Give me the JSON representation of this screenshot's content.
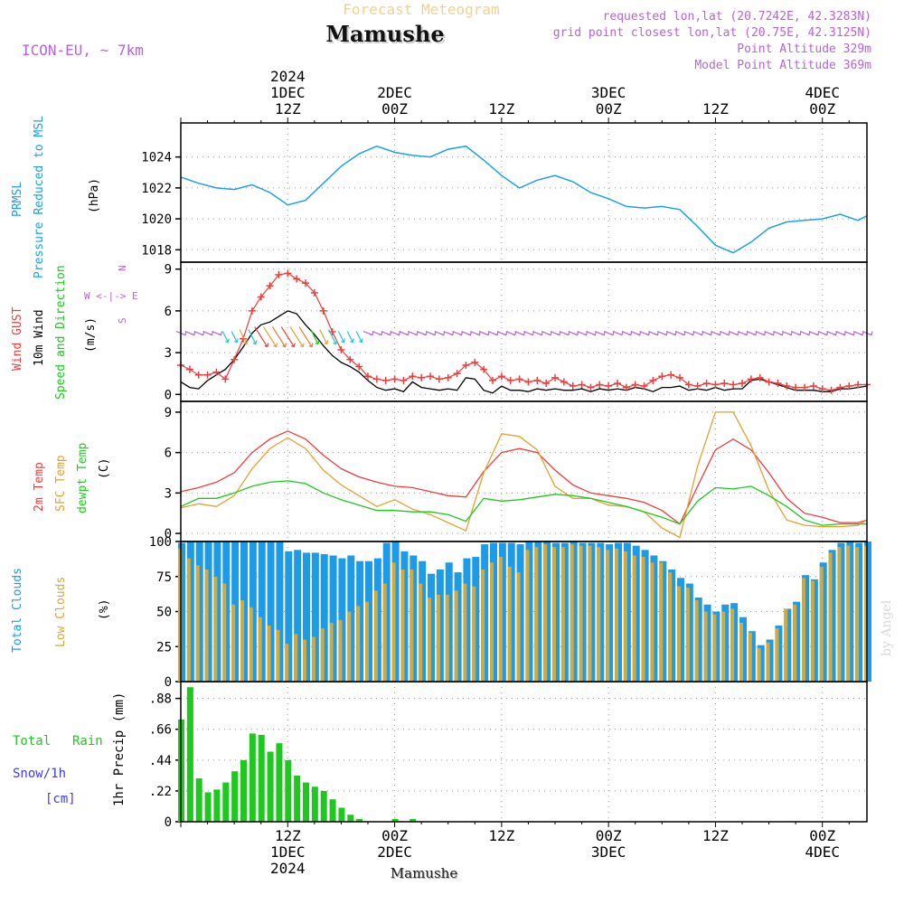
{
  "header": {
    "subtitle": "Forecast Meteogram",
    "location": "Mamushe",
    "model": "ICON-EU, ~ 7km",
    "requested": "requested lon,lat (20.7242E, 42.3283N)",
    "grid_point": "grid point closest lon,lat (20.75E, 42.3125N)",
    "point_alt": "Point Altitude 329m",
    "model_alt": "Model Point Altitude 369m",
    "footer_location": "Mamushe",
    "credit": "by Angel"
  },
  "colors": {
    "pressure": "#1ea0e6",
    "gust": "#f03c3c",
    "wind": "#000000",
    "temp2m": "#f03c3c",
    "sfc": "#e6a032",
    "dewpt": "#1ec81e",
    "total_cloud": "#1e9be6",
    "low_cloud": "#d2aa3c",
    "rain": "#1ec81e",
    "snow": "#3c3cf0",
    "purple": "#b464dc"
  },
  "top_axis": [
    {
      "t": 12,
      "lines": [
        "2024",
        "1DEC",
        "12Z"
      ]
    },
    {
      "t": 24,
      "lines": [
        "2DEC",
        "00Z"
      ]
    },
    {
      "t": 36,
      "lines": [
        "12Z"
      ]
    },
    {
      "t": 48,
      "lines": [
        "3DEC",
        "00Z"
      ]
    },
    {
      "t": 60,
      "lines": [
        "12Z"
      ]
    },
    {
      "t": 72,
      "lines": [
        "4DEC",
        "00Z"
      ]
    }
  ],
  "bottom_axis": [
    {
      "t": 12,
      "lines": [
        "12Z",
        "1DEC",
        "2024"
      ]
    },
    {
      "t": 24,
      "lines": [
        "00Z",
        "2DEC"
      ]
    },
    {
      "t": 36,
      "lines": [
        "12Z"
      ]
    },
    {
      "t": 48,
      "lines": [
        "00Z",
        "3DEC"
      ]
    },
    {
      "t": 60,
      "lines": [
        "12Z"
      ]
    },
    {
      "t": 72,
      "lines": [
        "00Z",
        "4DEC"
      ]
    }
  ],
  "panel_labels": {
    "pressure": [
      "PRMSL",
      "Pressure Reduced to MSL",
      "(hPa)"
    ],
    "wind": [
      "Wind GUST",
      "10m Wind",
      "Speed and Direction",
      "(m/s)"
    ],
    "compass": [
      "N",
      "W <-|-> E",
      "S"
    ],
    "temp": [
      "2m Temp",
      "SFC Temp",
      "dewpt Temp",
      "(C)"
    ],
    "cloud": [
      "Total Clouds",
      "Low Clouds",
      "(%)"
    ],
    "precip": [
      "Total",
      "Rain",
      "Snow/1h",
      "[cm]",
      "1hr Precip (mm)"
    ]
  },
  "chart_data": [
    {
      "type": "line",
      "name": "pressure",
      "title": "PRMSL Pressure Reduced to MSL",
      "ylabel": "(hPa)",
      "x_unit": "hours from 2024-12-01 00Z",
      "xlim": [
        0,
        77
      ],
      "ylim": [
        1017.2,
        1026.2
      ],
      "yticks": [
        1018,
        1020,
        1022,
        1024
      ],
      "series": [
        {
          "name": "PRMSL",
          "x": [
            0,
            2,
            4,
            6,
            8,
            10,
            12,
            14,
            16,
            18,
            20,
            22,
            24,
            26,
            28,
            30,
            32,
            34,
            36,
            38,
            40,
            42,
            44,
            46,
            48,
            50,
            52,
            54,
            56,
            58,
            60,
            62,
            64,
            66,
            68,
            70,
            72,
            74,
            76,
            77
          ],
          "values": [
            1022.7,
            1022.3,
            1022.0,
            1021.9,
            1022.2,
            1021.7,
            1020.9,
            1021.2,
            1022.3,
            1023.4,
            1024.2,
            1024.7,
            1024.3,
            1024.1,
            1024.0,
            1024.5,
            1024.7,
            1023.8,
            1022.8,
            1022.0,
            1022.5,
            1022.8,
            1022.4,
            1021.7,
            1021.3,
            1020.8,
            1020.7,
            1020.8,
            1020.6,
            1019.5,
            1018.3,
            1017.8,
            1018.5,
            1019.4,
            1019.8,
            1019.9,
            1020.0,
            1020.3,
            1019.9,
            1020.2
          ]
        }
      ]
    },
    {
      "type": "line",
      "name": "wind",
      "title": "Wind GUST / 10m Wind Speed and Direction",
      "ylabel": "(m/s)",
      "xlim": [
        0,
        77
      ],
      "ylim": [
        -0.5,
        9.5
      ],
      "yticks": [
        0,
        3,
        6,
        9
      ],
      "x": [
        0,
        1,
        2,
        3,
        4,
        5,
        6,
        7,
        8,
        9,
        10,
        11,
        12,
        13,
        14,
        15,
        16,
        17,
        18,
        19,
        20,
        21,
        22,
        23,
        24,
        25,
        26,
        27,
        28,
        29,
        30,
        31,
        32,
        33,
        34,
        35,
        36,
        37,
        38,
        39,
        40,
        41,
        42,
        43,
        44,
        45,
        46,
        47,
        48,
        49,
        50,
        51,
        52,
        53,
        54,
        55,
        56,
        57,
        58,
        59,
        60,
        61,
        62,
        63,
        64,
        65,
        66,
        67,
        68,
        69,
        70,
        71,
        72,
        73,
        74,
        75,
        76,
        77
      ],
      "series": [
        {
          "name": "Wind GUST",
          "values": [
            2.1,
            1.8,
            1.4,
            1.4,
            1.6,
            1.1,
            2.5,
            4.0,
            6.0,
            7.0,
            7.8,
            8.6,
            8.7,
            8.3,
            8.0,
            7.3,
            6.0,
            4.5,
            3.2,
            2.5,
            2.0,
            1.3,
            1.1,
            1.0,
            1.1,
            1.0,
            1.3,
            1.2,
            1.3,
            1.1,
            1.2,
            1.5,
            2.1,
            2.3,
            1.8,
            1.0,
            1.3,
            1.0,
            1.1,
            0.9,
            1.0,
            0.8,
            1.2,
            0.9,
            0.6,
            0.7,
            0.5,
            0.7,
            0.6,
            0.8,
            0.5,
            0.7,
            0.6,
            1.0,
            1.3,
            1.4,
            1.2,
            0.7,
            0.6,
            0.8,
            0.7,
            0.8,
            0.7,
            0.8,
            1.1,
            1.2,
            0.9,
            0.8,
            0.6,
            0.5,
            0.5,
            0.6,
            0.4,
            0.3,
            0.5,
            0.6,
            0.7,
            0.7
          ]
        },
        {
          "name": "10m Wind",
          "values": [
            0.9,
            0.5,
            0.4,
            1.0,
            1.4,
            1.8,
            2.5,
            3.4,
            4.4,
            5.0,
            5.2,
            5.6,
            6.0,
            5.8,
            5.0,
            4.3,
            3.5,
            2.8,
            2.3,
            2.0,
            1.6,
            1.0,
            0.5,
            0.3,
            0.4,
            0.2,
            0.9,
            0.5,
            0.4,
            0.3,
            0.4,
            0.3,
            1.2,
            1.1,
            0.3,
            0.1,
            0.6,
            0.3,
            0.3,
            0.2,
            0.4,
            0.3,
            0.4,
            0.3,
            0.3,
            0.4,
            0.2,
            0.4,
            0.3,
            0.4,
            0.3,
            0.5,
            0.4,
            0.2,
            0.5,
            0.5,
            0.6,
            0.3,
            0.4,
            0.3,
            0.5,
            0.3,
            0.4,
            0.4,
            1.0,
            1.1,
            0.9,
            0.7,
            0.5,
            0.3,
            0.3,
            0.3,
            0.2,
            0.2,
            0.4,
            0.4,
            0.5,
            0.6
          ]
        }
      ],
      "direction_arrows": {
        "x_start": 0,
        "x_end": 77,
        "step": 1,
        "y": 4.4,
        "note": "purple arrows, green/orange/red where strong"
      }
    },
    {
      "type": "line",
      "name": "temperature",
      "title": "2m Temp / SFC Temp / dewpt Temp",
      "ylabel": "(C)",
      "xlim": [
        0,
        77
      ],
      "ylim": [
        -0.6,
        9.8
      ],
      "yticks": [
        0,
        3,
        6,
        9
      ],
      "x": [
        0,
        2,
        4,
        6,
        8,
        10,
        12,
        14,
        16,
        18,
        20,
        22,
        24,
        26,
        28,
        30,
        32,
        34,
        36,
        38,
        40,
        42,
        44,
        46,
        48,
        50,
        52,
        54,
        56,
        58,
        60,
        62,
        64,
        66,
        68,
        70,
        72,
        74,
        76,
        77
      ],
      "series": [
        {
          "name": "2m Temp",
          "values": [
            3.1,
            3.4,
            3.8,
            4.5,
            6.0,
            7.0,
            7.6,
            7.0,
            5.8,
            4.8,
            4.2,
            3.8,
            3.5,
            3.4,
            3.1,
            2.8,
            2.7,
            4.6,
            6.0,
            6.3,
            6.0,
            4.7,
            3.6,
            3.0,
            2.8,
            2.6,
            2.3,
            1.7,
            0.7,
            3.5,
            6.2,
            7.0,
            6.2,
            4.5,
            2.6,
            1.5,
            1.2,
            0.8,
            0.8,
            1.0
          ]
        },
        {
          "name": "SFC Temp",
          "values": [
            1.9,
            2.2,
            2.0,
            2.8,
            4.8,
            6.3,
            7.1,
            6.3,
            4.7,
            3.6,
            2.8,
            2.0,
            2.5,
            1.8,
            1.4,
            0.8,
            0.2,
            4.5,
            7.4,
            7.2,
            6.2,
            3.5,
            2.6,
            2.6,
            2.1,
            2.0,
            1.6,
            0.4,
            -0.3,
            5.0,
            9.0,
            9.0,
            6.5,
            3.2,
            1.0,
            0.6,
            0.5,
            0.5,
            0.6,
            1.0
          ]
        },
        {
          "name": "dewpt Temp",
          "values": [
            2.0,
            2.6,
            2.6,
            3.0,
            3.5,
            3.8,
            3.9,
            3.7,
            3.0,
            2.5,
            2.1,
            1.7,
            1.7,
            1.6,
            1.6,
            1.4,
            0.9,
            2.6,
            2.4,
            2.5,
            2.7,
            2.9,
            2.8,
            2.6,
            2.3,
            2.0,
            1.6,
            1.2,
            0.7,
            2.4,
            3.4,
            3.3,
            3.5,
            2.8,
            2.0,
            1.0,
            0.6,
            0.7,
            0.7,
            0.7
          ]
        }
      ]
    },
    {
      "type": "bar",
      "name": "clouds",
      "title": "Total Clouds / Low Clouds",
      "ylabel": "(%)",
      "xlim": [
        0,
        77
      ],
      "ylim": [
        0,
        100
      ],
      "yticks": [
        0,
        25,
        50,
        75,
        100
      ],
      "x": [
        0,
        1,
        2,
        3,
        4,
        5,
        6,
        7,
        8,
        9,
        10,
        11,
        12,
        13,
        14,
        15,
        16,
        17,
        18,
        19,
        20,
        21,
        22,
        23,
        24,
        25,
        26,
        27,
        28,
        29,
        30,
        31,
        32,
        33,
        34,
        35,
        36,
        37,
        38,
        39,
        40,
        41,
        42,
        43,
        44,
        45,
        46,
        47,
        48,
        49,
        50,
        51,
        52,
        53,
        54,
        55,
        56,
        57,
        58,
        59,
        60,
        61,
        62,
        63,
        64,
        65,
        66,
        67,
        68,
        69,
        70,
        71,
        72,
        73,
        74,
        75,
        76,
        77
      ],
      "series": [
        {
          "name": "Total Clouds",
          "values": [
            99,
            100,
            100,
            100,
            100,
            100,
            100,
            100,
            100,
            100,
            100,
            100,
            93,
            94,
            92,
            92,
            91,
            90,
            88,
            90,
            86,
            86,
            88,
            99,
            100,
            93,
            90,
            86,
            77,
            80,
            85,
            78,
            88,
            89,
            98,
            99,
            99,
            99,
            98,
            100,
            100,
            100,
            99,
            99,
            100,
            99,
            99,
            99,
            98,
            99,
            99,
            97,
            94,
            90,
            86,
            80,
            74,
            70,
            60,
            55,
            50,
            55,
            56,
            46,
            36,
            26,
            30,
            40,
            52,
            57,
            76,
            73,
            85,
            94,
            99,
            100,
            99,
            100
          ]
        },
        {
          "name": "Low Clouds",
          "values": [
            95,
            88,
            83,
            80,
            75,
            70,
            55,
            58,
            53,
            46,
            40,
            37,
            27,
            34,
            30,
            32,
            38,
            42,
            44,
            50,
            54,
            57,
            65,
            70,
            85,
            80,
            80,
            70,
            60,
            62,
            62,
            65,
            70,
            68,
            80,
            85,
            89,
            82,
            78,
            94,
            96,
            98,
            96,
            96,
            98,
            97,
            97,
            96,
            94,
            95,
            93,
            90,
            89,
            85,
            85,
            78,
            68,
            67,
            58,
            50,
            48,
            50,
            52,
            42,
            35,
            24,
            28,
            38,
            52,
            55,
            74,
            72,
            82,
            92,
            96,
            97,
            96,
            97
          ]
        }
      ]
    },
    {
      "type": "bar",
      "name": "precip",
      "title": "1hr Precip (mm)",
      "ylabel": "1hr Precip (mm)",
      "xlim": [
        0,
        77
      ],
      "ylim": [
        0,
        1.0
      ],
      "yticks": [
        0,
        0.22,
        0.44,
        0.66,
        0.88
      ],
      "x": [
        0,
        1,
        2,
        3,
        4,
        5,
        6,
        7,
        8,
        9,
        10,
        11,
        12,
        13,
        14,
        15,
        16,
        17,
        18,
        19,
        20,
        24,
        26
      ],
      "series": [
        {
          "name": "Total Rain",
          "values": [
            0.73,
            0.96,
            0.31,
            0.21,
            0.23,
            0.28,
            0.36,
            0.44,
            0.63,
            0.62,
            0.5,
            0.56,
            0.44,
            0.33,
            0.28,
            0.25,
            0.22,
            0.16,
            0.1,
            0.05,
            0.02,
            0.02,
            0.02
          ]
        }
      ]
    }
  ]
}
